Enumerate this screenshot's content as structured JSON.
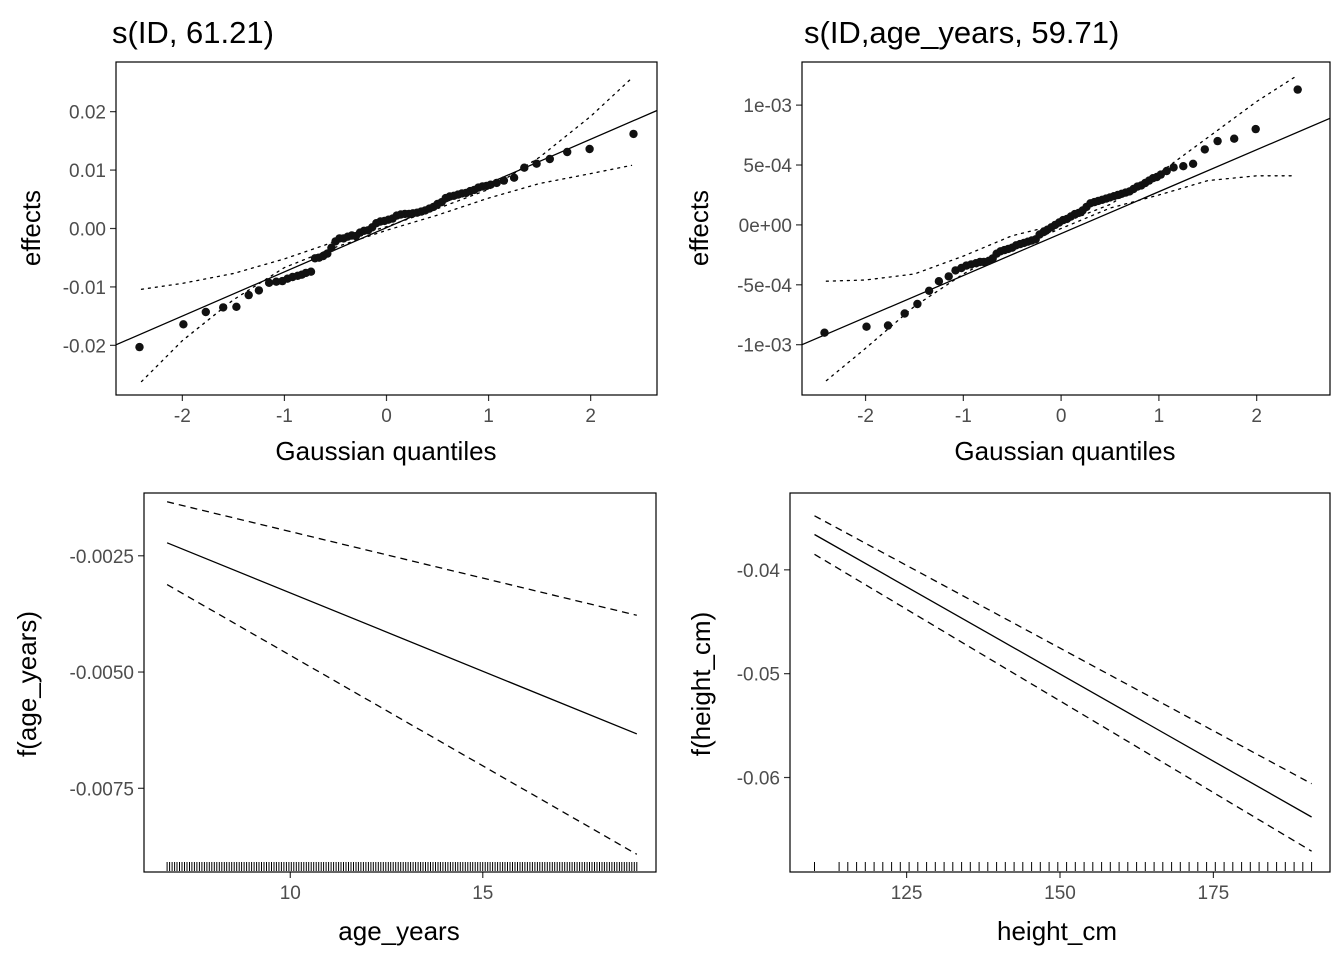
{
  "chart_data": [
    {
      "id": "p1",
      "type": "scatter",
      "title": "s(ID, 61.21)",
      "xlabel": "Gaussian quantiles",
      "ylabel": "effects",
      "xlim": [
        -2.65,
        2.65
      ],
      "ylim": [
        -0.0285,
        0.0285
      ],
      "xticks": [
        -2,
        -1,
        0,
        1,
        2
      ],
      "xtick_labels": [
        "-2",
        "-1",
        "0",
        "1",
        "2"
      ],
      "yticks": [
        -0.02,
        -0.01,
        0,
        0.01,
        0.02
      ],
      "ytick_labels": [
        "-0.02",
        "-0.01",
        "0.00",
        "0.01",
        "0.02"
      ],
      "grid": false,
      "reference_line": {
        "x": [
          -2.65,
          2.65
        ],
        "y": [
          -0.0199,
          0.0202
        ]
      },
      "band_upper": {
        "x": [
          -2.4,
          -2,
          -1.5,
          -1,
          -0.5,
          0,
          0.5,
          1,
          1.5,
          2,
          2.4
        ],
        "y": [
          -0.0104,
          -0.0094,
          -0.0077,
          -0.0052,
          -0.0022,
          0.0003,
          0.0034,
          0.0067,
          0.0122,
          0.0192,
          0.0257
        ]
      },
      "band_lower": {
        "x": [
          -2.4,
          -2,
          -1.5,
          -1,
          -0.5,
          0,
          0.5,
          1,
          1.5,
          2,
          2.4
        ],
        "y": [
          -0.0262,
          -0.0192,
          -0.0122,
          -0.0067,
          -0.0032,
          -0.0003,
          0.0023,
          0.0052,
          0.0077,
          0.0094,
          0.0108
        ]
      },
      "points": {
        "x": [
          -2.42,
          -1.99,
          -1.77,
          -1.6,
          -1.47,
          -1.35,
          -1.25,
          -1.15,
          -1.08,
          -1.02,
          -0.97,
          -0.92,
          -0.87,
          -0.83,
          -0.79,
          -0.74,
          -0.7,
          -0.66,
          -0.62,
          -0.58,
          -0.54,
          -0.5,
          -0.46,
          -0.42,
          -0.38,
          -0.34,
          -0.3,
          -0.26,
          -0.22,
          -0.18,
          -0.14,
          -0.1,
          -0.06,
          -0.02,
          0.02,
          0.06,
          0.1,
          0.14,
          0.18,
          0.22,
          0.26,
          0.3,
          0.34,
          0.38,
          0.42,
          0.46,
          0.5,
          0.54,
          0.58,
          0.62,
          0.66,
          0.7,
          0.74,
          0.78,
          0.82,
          0.86,
          0.9,
          0.94,
          0.98,
          1.02,
          1.08,
          1.15,
          1.25,
          1.35,
          1.47,
          1.6,
          1.77,
          1.99,
          2.42
        ],
        "y": [
          -0.0203,
          -0.0164,
          -0.0143,
          -0.0135,
          -0.0134,
          -0.0114,
          -0.0106,
          -0.0093,
          -0.0091,
          -0.009,
          -0.0086,
          -0.0083,
          -0.0081,
          -0.0079,
          -0.0076,
          -0.0074,
          -0.0051,
          -0.005,
          -0.0047,
          -0.0043,
          -0.0033,
          -0.0022,
          -0.0017,
          -0.0017,
          -0.0014,
          -0.0012,
          -0.0013,
          -0.0007,
          -0.0004,
          -0.0003,
          0.0002,
          0.0009,
          0.0012,
          0.0013,
          0.0015,
          0.0017,
          0.0022,
          0.0024,
          0.0025,
          0.0025,
          0.0026,
          0.0027,
          0.0029,
          0.0031,
          0.0034,
          0.0037,
          0.0042,
          0.0045,
          0.0052,
          0.0055,
          0.0056,
          0.0058,
          0.006,
          0.0061,
          0.0064,
          0.0066,
          0.007,
          0.0072,
          0.0073,
          0.0075,
          0.0078,
          0.0082,
          0.0087,
          0.0104,
          0.0111,
          0.0119,
          0.0131,
          0.0136,
          0.0162
        ]
      }
    },
    {
      "id": "p2",
      "type": "scatter",
      "title": "s(ID,age_years, 59.71)",
      "xlabel": "Gaussian quantiles",
      "ylabel": "effects",
      "xlim": [
        -2.65,
        2.75
      ],
      "ylim": [
        -0.00142,
        0.00136
      ],
      "xticks": [
        -2,
        -1,
        0,
        1,
        2
      ],
      "xtick_labels": [
        "-2",
        "-1",
        "0",
        "1",
        "2"
      ],
      "yticks": [
        -0.001,
        -0.0005,
        0,
        0.0005,
        0.001
      ],
      "ytick_labels": [
        "-1e-03",
        "-5e-04",
        "0e+00",
        "5e-04",
        "1e-03"
      ],
      "grid": false,
      "reference_line": {
        "x": [
          -2.65,
          2.75
        ],
        "y": [
          -0.001,
          0.00089
        ]
      },
      "band_upper": {
        "x": [
          -2.4,
          -2,
          -1.5,
          -1,
          -0.5,
          0,
          0.5,
          1,
          1.5,
          2,
          2.4
        ],
        "y": [
          -0.00047,
          -0.00046,
          -0.00041,
          -0.00026,
          -9e-05,
          1e-05,
          0.00017,
          0.00043,
          0.00073,
          0.00103,
          0.00124
        ]
      },
      "band_lower": {
        "x": [
          -2.4,
          -2,
          -1.5,
          -1,
          -0.5,
          0,
          0.5,
          1,
          1.5,
          2,
          2.4
        ],
        "y": [
          -0.0013,
          -0.00103,
          -0.00068,
          -0.00041,
          -0.00019,
          -3e-05,
          0.00014,
          0.00025,
          0.00037,
          0.00041,
          0.00041
        ]
      },
      "points": {
        "x": [
          -2.42,
          -1.99,
          -1.77,
          -1.6,
          -1.47,
          -1.35,
          -1.25,
          -1.15,
          -1.08,
          -1.02,
          -0.97,
          -0.92,
          -0.87,
          -0.83,
          -0.79,
          -0.74,
          -0.7,
          -0.66,
          -0.62,
          -0.58,
          -0.54,
          -0.5,
          -0.46,
          -0.42,
          -0.38,
          -0.34,
          -0.3,
          -0.26,
          -0.22,
          -0.18,
          -0.14,
          -0.1,
          -0.06,
          -0.02,
          0.02,
          0.06,
          0.1,
          0.14,
          0.18,
          0.22,
          0.26,
          0.3,
          0.34,
          0.38,
          0.42,
          0.46,
          0.5,
          0.54,
          0.58,
          0.62,
          0.66,
          0.7,
          0.74,
          0.78,
          0.82,
          0.86,
          0.9,
          0.94,
          0.98,
          1.02,
          1.08,
          1.15,
          1.25,
          1.35,
          1.47,
          1.6,
          1.77,
          1.99,
          2.42
        ],
        "y": [
          -0.0009,
          -0.00085,
          -0.00084,
          -0.00074,
          -0.00066,
          -0.00055,
          -0.00047,
          -0.00043,
          -0.00038,
          -0.00036,
          -0.00034,
          -0.00033,
          -0.00032,
          -0.00031,
          -0.00031,
          -0.0003,
          -0.00028,
          -0.00024,
          -0.00022,
          -0.00021,
          -0.0002,
          -0.00019,
          -0.00017,
          -0.00016,
          -0.00015,
          -0.00014,
          -0.00013,
          -0.00012,
          -8e-05,
          -6e-05,
          -4e-05,
          -2e-05,
          0,
          2e-05,
          4e-05,
          5e-05,
          7e-05,
          9e-05,
          0.0001,
          0.00012,
          0.00015,
          0.00018,
          0.00019,
          0.0002,
          0.00021,
          0.00022,
          0.00023,
          0.00024,
          0.00025,
          0.00026,
          0.00027,
          0.00028,
          0.0003,
          0.00032,
          0.00033,
          0.00035,
          0.00037,
          0.00039,
          0.0004,
          0.00042,
          0.00045,
          0.00048,
          0.00049,
          0.00051,
          0.00063,
          0.0007,
          0.00072,
          0.0008,
          0.00113
        ]
      }
    },
    {
      "id": "p3",
      "type": "line",
      "title": "",
      "xlabel": "age_years",
      "ylabel": "f(age_years)",
      "xlim": [
        6.2,
        19.5
      ],
      "ylim": [
        -0.0093,
        -0.00115
      ],
      "xticks": [
        10,
        15
      ],
      "xtick_labels": [
        "10",
        "15"
      ],
      "yticks": [
        -0.0025,
        -0.005,
        -0.0075
      ],
      "ytick_labels": [
        "-0.0025",
        "-0.0050",
        "-0.0075"
      ],
      "grid": false,
      "series": [
        {
          "style": "solid",
          "x": [
            6.8,
            19.0
          ],
          "y": [
            -0.00222,
            -0.00633
          ]
        },
        {
          "style": "dashed",
          "x": [
            6.8,
            19.0
          ],
          "y": [
            -0.00134,
            -0.00378
          ]
        },
        {
          "style": "dashed",
          "x": [
            6.8,
            19.0
          ],
          "y": [
            -0.00312,
            -0.00892
          ]
        }
      ],
      "rug": {
        "from": 6.8,
        "to": 19.0,
        "count": 190
      }
    },
    {
      "id": "p4",
      "type": "line",
      "title": "",
      "xlabel": "height_cm",
      "ylabel": "f(height_cm)",
      "xlim": [
        106,
        194
      ],
      "ylim": [
        -0.0691,
        -0.0326
      ],
      "xticks": [
        125,
        150,
        175
      ],
      "xtick_labels": [
        "125",
        "150",
        "175"
      ],
      "yticks": [
        -0.04,
        -0.05,
        -0.06
      ],
      "ytick_labels": [
        "-0.04",
        "-0.05",
        "-0.06"
      ],
      "grid": false,
      "series": [
        {
          "style": "solid",
          "x": [
            110,
            191
          ],
          "y": [
            -0.0366,
            -0.0638
          ]
        },
        {
          "style": "dashed",
          "x": [
            110,
            191
          ],
          "y": [
            -0.0348,
            -0.0606
          ]
        },
        {
          "style": "dashed",
          "x": [
            110,
            191
          ],
          "y": [
            -0.0385,
            -0.0671
          ]
        }
      ],
      "rug": {
        "from": 114,
        "to": 191,
        "count": 55,
        "extra": [
          110
        ]
      }
    }
  ]
}
